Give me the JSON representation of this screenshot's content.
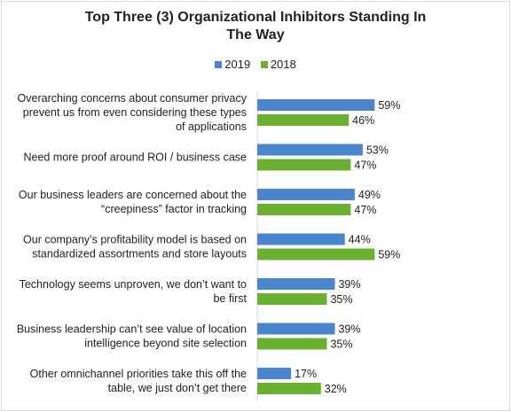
{
  "chart_data": {
    "type": "bar",
    "orientation": "horizontal",
    "title": "Top Three (3) Organizational Inhibitors Standing In The Way",
    "title_lines": [
      "Top Three (3) Organizational Inhibitors Standing In",
      "The Way"
    ],
    "legend_position": "top",
    "categories": [
      [
        "Overarching concerns about consumer privacy",
        "prevent us from even considering these types",
        "of applications"
      ],
      [
        "Need more proof around ROI / business case"
      ],
      [
        "Our business leaders are concerned about the",
        "“creepiness” factor in tracking"
      ],
      [
        "Our company’s profitability model is based on",
        "standardized assortments and store layouts"
      ],
      [
        "Technology seems unproven, we don’t want to",
        "be first"
      ],
      [
        "Business leadership can’t see value of location",
        "intelligence beyond site selection"
      ],
      [
        "Other omnichannel priorities take this off the",
        "table, we just don’t get there"
      ]
    ],
    "series": [
      {
        "name": "2019",
        "color": "#4a86d0",
        "values": [
          59,
          53,
          49,
          44,
          39,
          39,
          17
        ],
        "labels": [
          "59%",
          "53%",
          "49%",
          "44%",
          "39%",
          "39%",
          "17%"
        ]
      },
      {
        "name": "2018",
        "color": "#6ab12f",
        "values": [
          46,
          47,
          47,
          59,
          35,
          35,
          32
        ],
        "labels": [
          "46%",
          "47%",
          "47%",
          "59%",
          "35%",
          "35%",
          "32%"
        ]
      }
    ],
    "xlim": [
      0,
      100
    ],
    "grid": false,
    "value_suffix": "%"
  }
}
